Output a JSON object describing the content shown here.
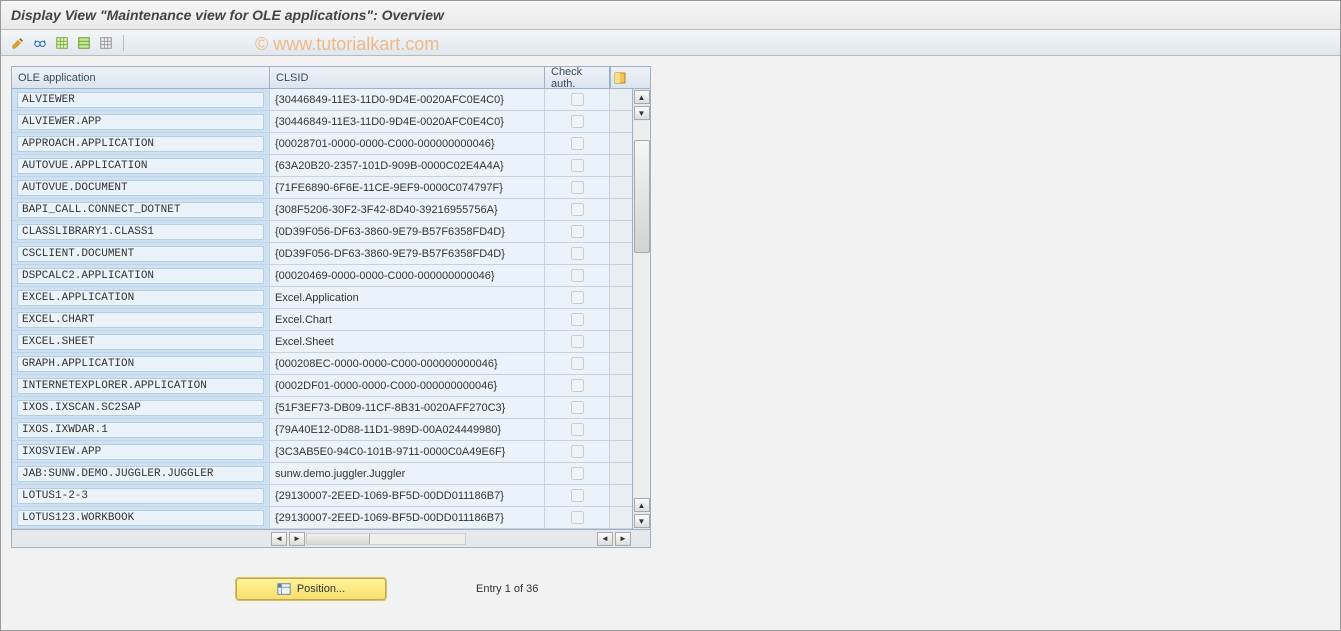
{
  "window": {
    "title": "Display View \"Maintenance view for OLE applications\": Overview"
  },
  "watermark": "© www.tutorialkart.com",
  "toolbar": {
    "icons": [
      "wrench-icon",
      "glasses-icon",
      "table-icon",
      "table-green-icon",
      "table-grid-icon"
    ]
  },
  "table": {
    "columns": {
      "app": "OLE application",
      "clsid": "CLSID",
      "check": "Check auth."
    },
    "column_widths": {
      "app": 258,
      "clsid": 275,
      "check": 65
    },
    "header_bg": "#e3ebf3",
    "row_bg_app": "#cce1f3",
    "row_bg_other": "#eaf2fa",
    "border_color": "#9db2c7",
    "rows": [
      {
        "app": "ALVIEWER",
        "clsid": "{30446849-11E3-11D0-9D4E-0020AFC0E4C0}",
        "check": false
      },
      {
        "app": "ALVIEWER.APP",
        "clsid": "{30446849-11E3-11D0-9D4E-0020AFC0E4C0}",
        "check": false
      },
      {
        "app": "APPROACH.APPLICATION",
        "clsid": "{00028701-0000-0000-C000-000000000046}",
        "check": false
      },
      {
        "app": "AUTOVUE.APPLICATION",
        "clsid": "{63A20B20-2357-101D-909B-0000C02E4A4A}",
        "check": false
      },
      {
        "app": "AUTOVUE.DOCUMENT",
        "clsid": "{71FE6890-6F6E-11CE-9EF9-0000C074797F}",
        "check": false
      },
      {
        "app": "BAPI_CALL.CONNECT_DOTNET",
        "clsid": "{308F5206-30F2-3F42-8D40-39216955756A}",
        "check": false
      },
      {
        "app": "CLASSLIBRARY1.CLASS1",
        "clsid": "{0D39F056-DF63-3860-9E79-B57F6358FD4D}",
        "check": false
      },
      {
        "app": "CSCLIENT.DOCUMENT",
        "clsid": "{0D39F056-DF63-3860-9E79-B57F6358FD4D}",
        "check": false
      },
      {
        "app": "DSPCALC2.APPLICATION",
        "clsid": "{00020469-0000-0000-C000-000000000046}",
        "check": false
      },
      {
        "app": "EXCEL.APPLICATION",
        "clsid": "Excel.Application",
        "check": false
      },
      {
        "app": "EXCEL.CHART",
        "clsid": "Excel.Chart",
        "check": false
      },
      {
        "app": "EXCEL.SHEET",
        "clsid": "Excel.Sheet",
        "check": false
      },
      {
        "app": "GRAPH.APPLICATION",
        "clsid": "{000208EC-0000-0000-C000-000000000046}",
        "check": false
      },
      {
        "app": "INTERNETEXPLORER.APPLICATION",
        "clsid": "{0002DF01-0000-0000-C000-000000000046}",
        "check": false
      },
      {
        "app": "IXOS.IXSCAN.SC2SAP",
        "clsid": "{51F3EF73-DB09-11CF-8B31-0020AFF270C3}",
        "check": false
      },
      {
        "app": "IXOS.IXWDAR.1",
        "clsid": "{79A40E12-0D88-11D1-989D-00A024449980}",
        "check": false
      },
      {
        "app": "IXOSVIEW.APP",
        "clsid": "{3C3AB5E0-94C0-101B-9711-0000C0A49E6F}",
        "check": false
      },
      {
        "app": "JAB:SUNW.DEMO.JUGGLER.JUGGLER",
        "clsid": "sunw.demo.juggler.Juggler",
        "check": false
      },
      {
        "app": "LOTUS1-2-3",
        "clsid": "{29130007-2EED-1069-BF5D-00DD011186B7}",
        "check": false
      },
      {
        "app": "LOTUS123.WORKBOOK",
        "clsid": "{29130007-2EED-1069-BF5D-00DD011186B7}",
        "check": false
      }
    ]
  },
  "footer": {
    "position_label": "Position...",
    "entry_text": "Entry 1 of 36"
  },
  "colors": {
    "title_text": "#444444",
    "toolbar_bg_top": "#f4f7fa",
    "toolbar_bg_bottom": "#e0e7ee",
    "yellow_btn_top": "#fff39a",
    "yellow_btn_bottom": "#f8de6e",
    "watermark": "#f0b478"
  }
}
